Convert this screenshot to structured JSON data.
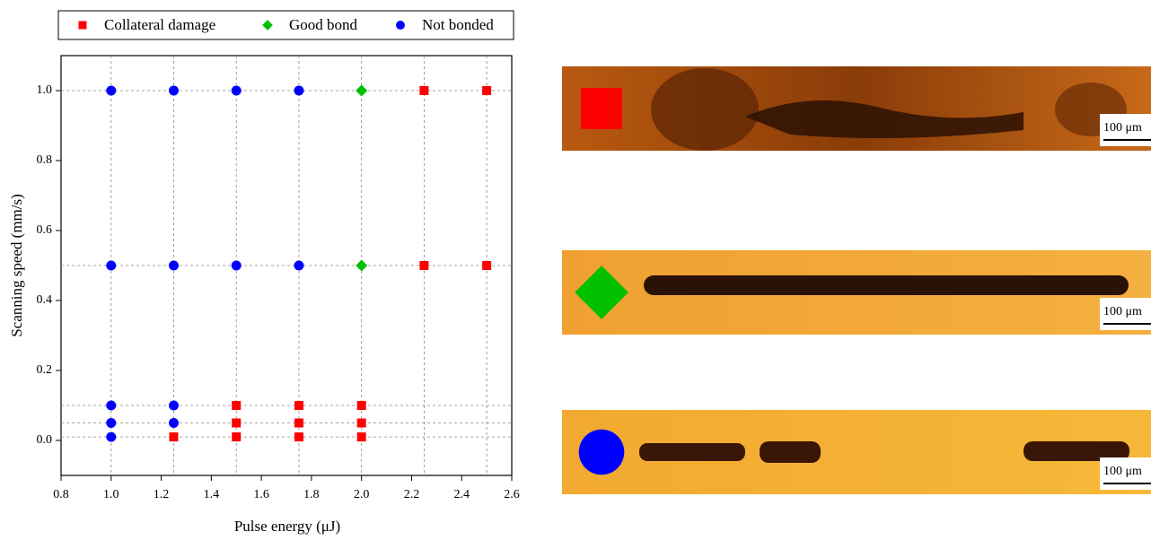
{
  "chart_data": {
    "type": "scatter",
    "xlabel": "Pulse energy (μJ)",
    "ylabel": "Scanning speed (mm/s)",
    "xlim": [
      0.8,
      2.6
    ],
    "ylim": [
      -0.1,
      1.1
    ],
    "xticks": [
      0.8,
      {
        "value": 1,
        "label": "1.0"
      },
      1.2,
      1.4,
      1.6,
      1.8,
      {
        "value": 2,
        "label": "2.0"
      },
      2.2,
      2.4,
      2.6
    ],
    "yticks": [
      {
        "value": 0,
        "label": "0.0"
      },
      0.2,
      0.4,
      0.6,
      0.8,
      {
        "value": 1,
        "label": "1.0"
      }
    ],
    "xgrid": [
      1,
      1.25,
      1.5,
      1.75,
      2,
      2.25,
      2.5
    ],
    "ygrid": [
      0.01,
      0.05,
      0.1,
      0.5,
      1
    ],
    "legend": "top",
    "series": [
      {
        "name": "Collateral damage",
        "color": "#ff0000",
        "marker": "square",
        "x": [
          2.25,
          2.5,
          2.25,
          2.5,
          1.5,
          1.75,
          2,
          1.5,
          1.75,
          2,
          1.25,
          1.5,
          1.75,
          2
        ],
        "values": [
          1,
          1,
          0.5,
          0.5,
          0.1,
          0.1,
          0.1,
          0.05,
          0.05,
          0.05,
          0.01,
          0.01,
          0.01,
          0.01
        ]
      },
      {
        "name": "Good bond",
        "color": "#00c000",
        "marker": "diamond",
        "x": [
          2,
          2
        ],
        "values": [
          1,
          0.5
        ]
      },
      {
        "name": "Not bonded",
        "color": "#0000ff",
        "marker": "circle",
        "x": [
          1,
          1.25,
          1.5,
          1.75,
          1,
          1.25,
          1.5,
          1.75,
          1,
          1.25,
          1,
          1.25,
          1
        ],
        "values": [
          1,
          1,
          1,
          1,
          0.5,
          0.5,
          0.5,
          0.5,
          0.1,
          0.1,
          0.05,
          0.05,
          0.01
        ]
      }
    ]
  },
  "panels": [
    {
      "scale_bar": "100 μm"
    },
    {
      "scale_bar": "100 μm"
    },
    {
      "scale_bar": "100 μm"
    }
  ]
}
